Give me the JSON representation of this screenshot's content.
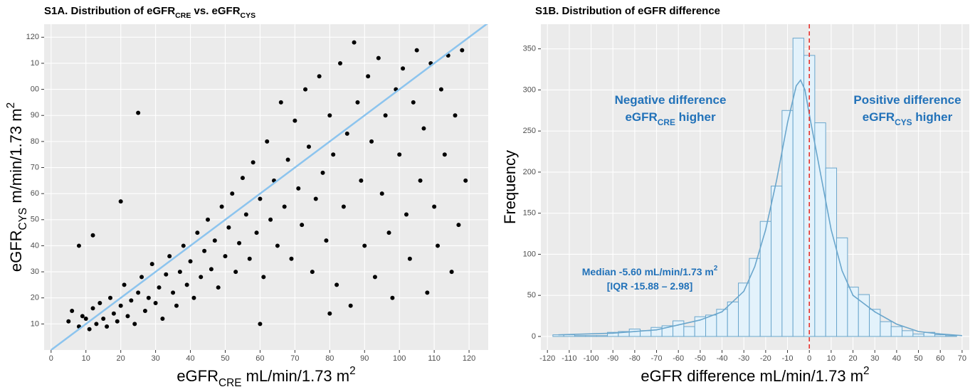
{
  "chart_data": [
    {
      "type": "scatter",
      "title": [
        {
          "text": "S1A. Distribution of eGFR"
        },
        {
          "text": "CRE",
          "shift": "sub"
        },
        {
          "text": " vs. eGFR"
        },
        {
          "text": "CYS",
          "shift": "sub"
        }
      ],
      "x_label": [
        {
          "text": "eGFR"
        },
        {
          "text": "CRE",
          "shift": "sub"
        },
        {
          "text": " mL/min/1.73 m"
        },
        {
          "text": "2",
          "shift": "super"
        }
      ],
      "y_label": [
        {
          "text": "eGFR"
        },
        {
          "text": "CYS",
          "shift": "sub"
        },
        {
          "text": " m/min/1.73 m"
        },
        {
          "text": "2",
          "shift": "super"
        }
      ],
      "x": [
        5,
        6,
        8,
        9,
        10,
        11,
        12,
        13,
        14,
        15,
        16,
        17,
        18,
        19,
        20,
        21,
        22,
        23,
        24,
        25,
        26,
        27,
        28,
        29,
        30,
        31,
        32,
        33,
        34,
        35,
        36,
        37,
        38,
        39,
        40,
        41,
        42,
        43,
        44,
        45,
        46,
        47,
        48,
        49,
        50,
        51,
        52,
        53,
        54,
        55,
        56,
        57,
        58,
        59,
        60,
        61,
        62,
        63,
        64,
        65,
        66,
        67,
        68,
        69,
        70,
        71,
        72,
        73,
        74,
        75,
        76,
        77,
        78,
        79,
        80,
        81,
        82,
        83,
        84,
        85,
        86,
        87,
        88,
        89,
        90,
        91,
        92,
        93,
        94,
        95,
        96,
        97,
        98,
        99,
        100,
        101,
        102,
        103,
        104,
        105,
        106,
        107,
        108,
        109,
        110,
        111,
        112,
        113,
        114,
        115,
        116,
        117,
        118,
        119,
        25,
        8,
        20,
        12,
        60,
        80
      ],
      "y": [
        11,
        15,
        9,
        13,
        12,
        8,
        16,
        10,
        18,
        12,
        9,
        20,
        14,
        11,
        17,
        25,
        13,
        19,
        10,
        22,
        28,
        15,
        20,
        33,
        18,
        24,
        12,
        29,
        36,
        22,
        17,
        30,
        40,
        25,
        34,
        20,
        45,
        28,
        38,
        50,
        31,
        42,
        24,
        55,
        36,
        47,
        60,
        30,
        41,
        66,
        52,
        35,
        72,
        45,
        58,
        28,
        80,
        50,
        65,
        40,
        95,
        55,
        73,
        35,
        88,
        62,
        48,
        100,
        78,
        30,
        58,
        105,
        68,
        42,
        90,
        75,
        25,
        110,
        55,
        83,
        17,
        118,
        95,
        65,
        40,
        105,
        80,
        28,
        112,
        60,
        90,
        45,
        20,
        100,
        75,
        108,
        52,
        35,
        95,
        115,
        65,
        85,
        22,
        110,
        55,
        40,
        100,
        75,
        113,
        30,
        90,
        48,
        115,
        65,
        91,
        40,
        57,
        44,
        10,
        14
      ],
      "color": "#000000",
      "identity_line": true,
      "identity_color": "#8cc4ee",
      "xlim": [
        -2,
        125.5
      ],
      "ylim": [
        0,
        125
      ],
      "xticks": [
        0,
        10,
        20,
        30,
        40,
        50,
        60,
        70,
        80,
        90,
        100,
        110,
        120
      ],
      "yticks": [
        10,
        20,
        30,
        40,
        50,
        60,
        70,
        80,
        90,
        {
          "value": 100,
          "label": "00"
        },
        {
          "value": 110,
          "label": "10"
        },
        120
      ],
      "grid": true
    },
    {
      "type": "histogram",
      "title": [
        {
          "text": "S1B. Distribution of eGFR difference"
        }
      ],
      "x_label": [
        {
          "text": "eGFR difference mL/min/1.73 m"
        },
        {
          "text": "2",
          "shift": "super"
        }
      ],
      "y_label": [
        {
          "text": "Frequency"
        }
      ],
      "bins": [
        -117.5,
        -112.5,
        -107.5,
        -102.5,
        -97.5,
        -92.5,
        -87.5,
        -82.5,
        -77.5,
        -72.5,
        -67.5,
        -62.5,
        -57.5,
        -52.5,
        -47.5,
        -42.5,
        -37.5,
        -32.5,
        -27.5,
        -22.5,
        -17.5,
        -12.5,
        -7.5,
        -2.5,
        2.5,
        7.5,
        12.5,
        17.5,
        22.5,
        27.5,
        32.5,
        37.5,
        42.5,
        47.5,
        52.5,
        57.5,
        62.5,
        67.5
      ],
      "counts": [
        2,
        2,
        1,
        1,
        1,
        5,
        6,
        9,
        7,
        11,
        13,
        19,
        12,
        24,
        26,
        33,
        42,
        65,
        95,
        140,
        183,
        275,
        363,
        342,
        260,
        205,
        120,
        60,
        51,
        33,
        18,
        12,
        7,
        3,
        5,
        2,
        1
      ],
      "color": "#e3f2fb",
      "edge_color": "#6aa6cc",
      "density": {
        "x": [
          -115,
          -90,
          -70,
          -50,
          -40,
          -30,
          -25,
          -20,
          -15,
          -10,
          -6,
          -4,
          -2,
          0,
          5,
          10,
          15,
          20,
          25,
          30,
          40,
          50,
          60,
          70
        ],
        "y": [
          2,
          4,
          8,
          20,
          30,
          55,
          85,
          130,
          190,
          260,
          305,
          312,
          300,
          270,
          200,
          130,
          80,
          50,
          40,
          30,
          15,
          6,
          3,
          1
        ],
        "color": "#6aa6cc"
      },
      "vline": 0,
      "vline_color": "#e8322c",
      "annotations": [
        [
          {
            "text": "Negative difference"
          }
        ],
        [
          {
            "text": "eGFR"
          },
          {
            "text": "CRE",
            "shift": "sub"
          },
          {
            "text": " higher"
          }
        ],
        [
          {
            "text": "Positive difference"
          }
        ],
        [
          {
            "text": "eGFR"
          },
          {
            "text": "CYS",
            "shift": "sub"
          },
          {
            "text": " higher"
          }
        ],
        [
          {
            "text": "Median -5.60 mL/min/1.73 m"
          },
          {
            "text": "2",
            "shift": "super"
          }
        ],
        [
          {
            "text": "[IQR -15.88 – 2.98]"
          }
        ]
      ],
      "xlim": [
        -123,
        73.3
      ],
      "ylim": [
        -16.5,
        380
      ],
      "xticks": [
        -120,
        -110,
        -100,
        -90,
        -80,
        -70,
        -60,
        -50,
        -40,
        -30,
        -20,
        -10,
        0,
        10,
        20,
        30,
        40,
        50,
        60,
        70
      ],
      "yticks": [
        0,
        50,
        100,
        150,
        200,
        250,
        300,
        350
      ],
      "grid": true
    }
  ]
}
